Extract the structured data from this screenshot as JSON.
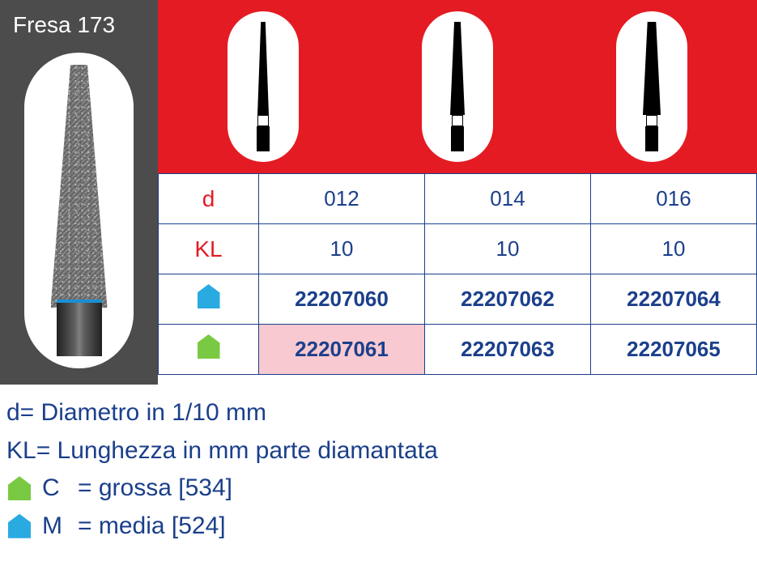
{
  "colors": {
    "panel_gray": "#4c4c4c",
    "header_red": "#e41b23",
    "navy": "#1b3f8b",
    "highlight_pink": "#f8c9d0",
    "marker_blue": "#29abe2",
    "marker_green": "#7ac943",
    "white": "#ffffff"
  },
  "product": {
    "title": "Fresa 173"
  },
  "table": {
    "row_labels": {
      "d": "d",
      "kl": "KL"
    },
    "columns": [
      {
        "d": "012",
        "kl": "10",
        "code_blue": "22207060",
        "code_green": "22207061",
        "green_highlight": true
      },
      {
        "d": "014",
        "kl": "10",
        "code_blue": "22207062",
        "code_green": "22207063",
        "green_highlight": false
      },
      {
        "d": "016",
        "kl": "10",
        "code_blue": "22207064",
        "code_green": "22207065",
        "green_highlight": false
      }
    ]
  },
  "legend": {
    "d_line": "d= Diametro in 1/10 mm",
    "kl_line": "KL= Lunghezza in mm parte diamantata",
    "green": {
      "letter": "C",
      "text": "= grossa [534]"
    },
    "blue": {
      "letter": "M",
      "text": "= media [524]"
    }
  }
}
